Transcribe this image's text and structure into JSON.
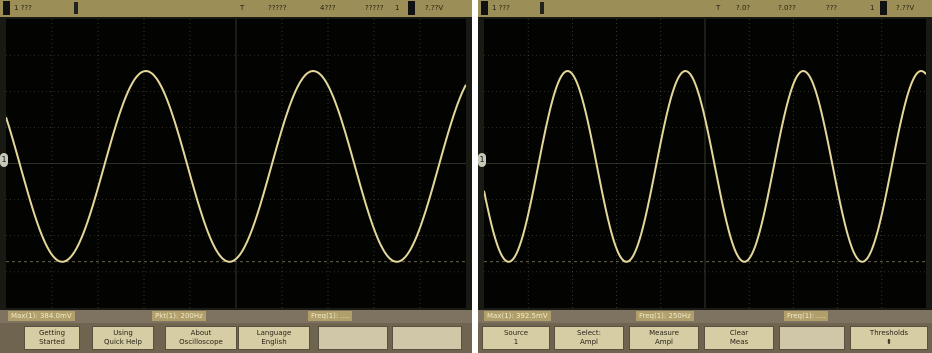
{
  "left_scope": {
    "topbar": {
      "ch1": "1 ???",
      "marker": "T",
      "time": "?????",
      "tdiv": "4???",
      "stop": "?????",
      "trig_num": "1",
      "trig_val": "?.??V"
    },
    "status": {
      "reading1": "Max(1): 384.0mV",
      "reading2": "Pkt(1): 200Hz",
      "reading3": "Freq(1): ...."
    },
    "softkeys": [
      {
        "line1": "Getting",
        "line2": "Started"
      },
      {
        "line1": "Using",
        "line2": "Quick Help"
      },
      {
        "line1": "About",
        "line2": "Oscilloscope"
      },
      {
        "line1": "Language",
        "line2": "English"
      }
    ]
  },
  "right_scope": {
    "topbar": {
      "ch1": "1 ???",
      "marker": "T",
      "time": "?.0?",
      "tdiv": "?.0??",
      "stop": "???",
      "trig_num": "1",
      "trig_val": "?.??V"
    },
    "status": {
      "reading1": "Max(1): 392.5mV",
      "reading2": "Freq(1): 250Hz",
      "reading3": "Freq(1): ...."
    },
    "softkeys": [
      {
        "line1": "Source",
        "line2": "1"
      },
      {
        "line1": "Select:",
        "line2": "Ampl"
      },
      {
        "line1": "Measure",
        "line2": "Ampl"
      },
      {
        "line1": "Clear",
        "line2": "Meas"
      },
      {
        "line1": "",
        "line2": ""
      },
      {
        "line1": "Thresholds",
        "line2": ""
      }
    ]
  },
  "colors": {
    "trace": "#e4d79a",
    "grid": "#5a5a4a",
    "bezel": "#9c8e57"
  },
  "icons": {
    "ground_marker": "ground-level-icon",
    "arrow": "arrow-icon"
  }
}
